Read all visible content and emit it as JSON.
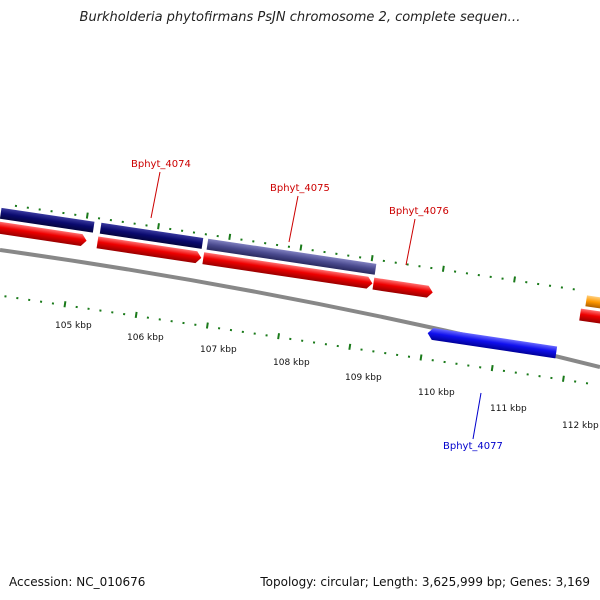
{
  "title": "Burkholderia phytofirmans PsJN chromosome 2, complete sequen…",
  "footer": {
    "accession": "Accession: NC_010676",
    "stats": "Topology: circular; Length: 3,625,999 bp; Genes: 3,169"
  },
  "scale_labels": [
    "105 kbp",
    "106 kbp",
    "107 kbp",
    "108 kbp",
    "109 kbp",
    "110 kbp",
    "111 kbp",
    "112 kbp"
  ],
  "gene_labels": [
    {
      "name": "Bphyt_4074",
      "color": "#cc0000"
    },
    {
      "name": "Bphyt_4075",
      "color": "#cc0000"
    },
    {
      "name": "Bphyt_4076",
      "color": "#cc0000"
    },
    {
      "name": "Bphyt_4077",
      "color": "#0000cc"
    }
  ],
  "colors": {
    "backbone": "#888888",
    "cds_forward": "#ee0000",
    "gene_navy": "#0a0a6e",
    "gene_slate": "#4a4a8e",
    "cds_reverse": "#1010ee",
    "orange_feature": "#ff9900",
    "tick": "#1a7a1a"
  }
}
